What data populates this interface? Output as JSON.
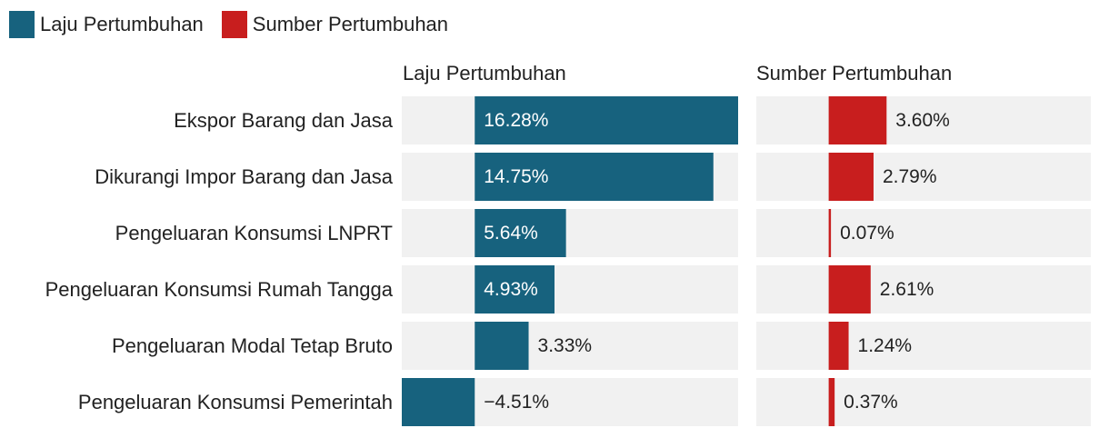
{
  "legend": {
    "items": [
      {
        "label": "Laju Pertumbuhan",
        "color": "#17627e"
      },
      {
        "label": "Sumber Pertumbuhan",
        "color": "#c81e1e"
      }
    ]
  },
  "chart_data": {
    "type": "bar",
    "orientation": "horizontal",
    "layout": "two-panel",
    "categories": [
      "Ekspor Barang dan Jasa",
      "Dikurangi Impor Barang dan Jasa",
      "Pengeluaran Konsumsi LNPRT",
      "Pengeluaran Konsumsi Rumah Tangga",
      "Pengeluaran Modal Tetap Bruto",
      "Pengeluaran Konsumsi Pemerintah"
    ],
    "panels": [
      {
        "title": "Laju Pertumbuhan",
        "color": "#17627e",
        "values": [
          16.28,
          14.75,
          5.64,
          4.93,
          3.33,
          -4.51
        ],
        "labels": [
          "16.28%",
          "14.75%",
          "5.64%",
          "4.93%",
          "3.33%",
          "−4.51%"
        ],
        "xlim": [
          -4.51,
          16.28
        ]
      },
      {
        "title": "Sumber Pertumbuhan",
        "color": "#c81e1e",
        "values": [
          3.6,
          2.79,
          0.07,
          2.61,
          1.24,
          0.37
        ],
        "labels": [
          "3.60%",
          "2.79%",
          "0.07%",
          "2.61%",
          "1.24%",
          "0.37%"
        ],
        "xlim": [
          -4.5,
          16.3
        ]
      }
    ],
    "grid": false,
    "legend_position": "top-left"
  }
}
